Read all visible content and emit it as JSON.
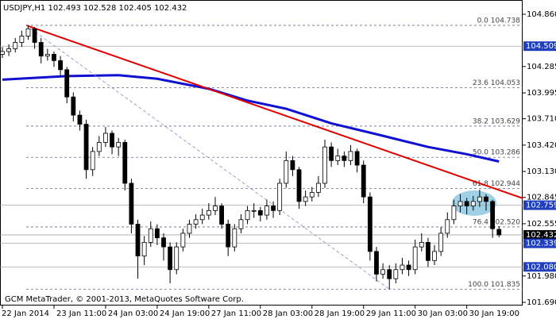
{
  "chart_data": {
    "type": "candlestick",
    "title": "USDJPY,H1  102.493 102.528 102.405 102.432",
    "footer": "GCM MetaTrader, © 2001-2013, MetaQuotes Software Corp.",
    "categories": [
      "22 Jan 2014",
      null,
      null,
      null,
      null,
      null,
      null,
      null,
      "23 Jan 11:00",
      null,
      null,
      null,
      null,
      null,
      null,
      null,
      "24 Jan 03:00",
      null,
      null,
      null,
      null,
      null,
      null,
      null,
      "24 Jan 19:00",
      null,
      null,
      null,
      null,
      null,
      null,
      null,
      "27 Jan 11:00",
      null,
      null,
      null,
      null,
      null,
      null,
      null,
      "28 Jan 03:00",
      null,
      null,
      null,
      null,
      null,
      null,
      null,
      "28 Jan 19:00",
      null,
      null,
      null,
      null,
      null,
      null,
      null,
      "29 Jan 11:00",
      null,
      null,
      null,
      null,
      null,
      null,
      null,
      "30 Jan 03:00",
      null,
      null,
      null,
      null,
      null,
      null,
      null,
      "30 Jan 19:00",
      null,
      null,
      null,
      null,
      null
    ],
    "candles": [
      [
        104.42,
        104.5,
        104.38,
        104.45
      ],
      [
        104.45,
        104.53,
        104.4,
        104.48
      ],
      [
        104.48,
        104.6,
        104.44,
        104.55
      ],
      [
        104.55,
        104.68,
        104.5,
        104.62
      ],
      [
        104.62,
        104.738,
        104.58,
        104.7
      ],
      [
        104.7,
        104.72,
        104.48,
        104.55
      ],
      [
        104.55,
        104.6,
        104.32,
        104.4
      ],
      [
        104.4,
        104.48,
        104.35,
        104.42
      ],
      [
        104.42,
        104.45,
        104.28,
        104.35
      ],
      [
        104.35,
        104.4,
        104.18,
        104.25
      ],
      [
        104.25,
        104.28,
        103.88,
        103.95
      ],
      [
        103.95,
        104.0,
        103.68,
        103.75
      ],
      [
        103.75,
        103.8,
        103.58,
        103.65
      ],
      [
        103.65,
        103.7,
        103.05,
        103.15
      ],
      [
        103.15,
        103.4,
        103.08,
        103.35
      ],
      [
        103.35,
        103.52,
        103.3,
        103.45
      ],
      [
        103.45,
        103.62,
        103.4,
        103.55
      ],
      [
        103.55,
        103.58,
        103.32,
        103.4
      ],
      [
        103.4,
        103.5,
        103.3,
        103.45
      ],
      [
        103.45,
        103.48,
        102.92,
        103.0
      ],
      [
        103.0,
        103.05,
        102.45,
        102.55
      ],
      [
        102.55,
        102.6,
        101.95,
        102.2
      ],
      [
        102.2,
        102.42,
        102.1,
        102.35
      ],
      [
        102.35,
        102.58,
        102.3,
        102.5
      ],
      [
        102.5,
        102.55,
        102.32,
        102.4
      ],
      [
        102.4,
        102.45,
        102.15,
        102.3
      ],
      [
        102.3,
        102.35,
        101.9,
        102.05
      ],
      [
        102.05,
        102.35,
        102.0,
        102.3
      ],
      [
        102.3,
        102.5,
        102.25,
        102.45
      ],
      [
        102.45,
        102.6,
        102.4,
        102.55
      ],
      [
        102.55,
        102.66,
        102.5,
        102.6
      ],
      [
        102.6,
        102.72,
        102.55,
        102.65
      ],
      [
        102.65,
        102.78,
        102.6,
        102.7
      ],
      [
        102.7,
        102.85,
        102.65,
        102.75
      ],
      [
        102.75,
        102.78,
        102.5,
        102.55
      ],
      [
        102.55,
        102.6,
        102.2,
        102.3
      ],
      [
        102.3,
        102.55,
        102.25,
        102.5
      ],
      [
        102.5,
        102.66,
        102.45,
        102.6
      ],
      [
        102.6,
        102.75,
        102.55,
        102.7
      ],
      [
        102.7,
        102.78,
        102.62,
        102.7
      ],
      [
        102.7,
        102.74,
        102.58,
        102.65
      ],
      [
        102.65,
        102.82,
        102.6,
        102.75
      ],
      [
        102.75,
        102.8,
        102.62,
        102.7
      ],
      [
        102.7,
        103.05,
        102.65,
        103.0
      ],
      [
        103.0,
        103.35,
        102.95,
        103.25
      ],
      [
        103.25,
        103.3,
        103.08,
        103.15
      ],
      [
        103.15,
        103.18,
        102.72,
        102.8
      ],
      [
        102.8,
        102.92,
        102.75,
        102.85
      ],
      [
        102.85,
        102.96,
        102.8,
        102.9
      ],
      [
        102.9,
        103.08,
        102.85,
        103.0
      ],
      [
        103.0,
        103.48,
        102.95,
        103.4
      ],
      [
        103.4,
        103.45,
        103.18,
        103.25
      ],
      [
        103.25,
        103.38,
        103.2,
        103.3
      ],
      [
        103.3,
        103.35,
        103.18,
        103.25
      ],
      [
        103.25,
        103.42,
        103.2,
        103.35
      ],
      [
        103.35,
        103.38,
        103.12,
        103.2
      ],
      [
        103.2,
        103.25,
        102.78,
        102.85
      ],
      [
        102.85,
        102.9,
        102.15,
        102.25
      ],
      [
        102.25,
        102.3,
        101.92,
        102.0
      ],
      [
        102.0,
        102.12,
        101.95,
        102.05
      ],
      [
        102.05,
        102.1,
        101.835,
        101.95
      ],
      [
        101.95,
        102.12,
        101.9,
        102.05
      ],
      [
        102.05,
        102.18,
        102.0,
        102.1
      ],
      [
        102.1,
        102.15,
        101.98,
        102.05
      ],
      [
        102.05,
        102.38,
        102.0,
        102.3
      ],
      [
        102.3,
        102.45,
        102.25,
        102.35
      ],
      [
        102.35,
        102.4,
        102.08,
        102.15
      ],
      [
        102.15,
        102.32,
        102.1,
        102.25
      ],
      [
        102.25,
        102.52,
        102.2,
        102.45
      ],
      [
        102.45,
        102.68,
        102.4,
        102.6
      ],
      [
        102.6,
        102.82,
        102.55,
        102.75
      ],
      [
        102.75,
        102.88,
        102.68,
        102.8
      ],
      [
        102.8,
        102.84,
        102.66,
        102.75
      ],
      [
        102.75,
        102.86,
        102.7,
        102.8
      ],
      [
        102.8,
        102.93,
        102.74,
        102.85
      ],
      [
        102.85,
        102.88,
        102.7,
        102.8
      ],
      [
        102.8,
        102.82,
        102.4,
        102.5
      ],
      [
        102.493,
        102.528,
        102.405,
        102.432
      ]
    ],
    "moving_average": {
      "color": "#1010d0",
      "x": [
        0,
        10,
        18,
        24,
        32,
        38,
        44,
        51,
        58,
        66,
        72,
        77
      ],
      "values": [
        104.14,
        104.18,
        104.19,
        104.15,
        104.04,
        103.91,
        103.82,
        103.66,
        103.54,
        103.4,
        103.32,
        103.24
      ]
    },
    "trend_lines": [
      {
        "color": "#e00000",
        "dashed": false,
        "x": [
          3.7,
          80.7
        ],
        "values": [
          104.738,
          102.834
        ]
      },
      {
        "color": "#7f8fbf",
        "dashed": true,
        "x": [
          3.7,
          60
        ],
        "values": [
          104.738,
          101.835
        ]
      }
    ],
    "fib_levels": [
      {
        "value": 104.738,
        "label": "0.0 104.738"
      },
      {
        "value": 104.053,
        "label": "23.6 104.053"
      },
      {
        "value": 103.629,
        "label": "38.2 103.629"
      },
      {
        "value": 103.286,
        "label": "50.0 103.286"
      },
      {
        "value": 102.944,
        "label": "61.8 102.944"
      },
      {
        "value": 102.52,
        "label": "76.4 102.520"
      },
      {
        "value": 101.835,
        "label": "100.0 101.835"
      }
    ],
    "price_levels": [
      {
        "value": 104.509,
        "color": "#1f3fbf"
      },
      {
        "value": 102.759,
        "color": "#1f3fbf"
      },
      {
        "value": 102.432,
        "color": "#000000"
      },
      {
        "value": 102.339,
        "color": "#1f3fbf"
      },
      {
        "value": 102.08,
        "label": "102.080",
        "color": "#1f3fbf"
      }
    ],
    "ylim": [
      101.655,
      105.017
    ],
    "yticks": [
      {
        "value": 104.86,
        "label": "104.860"
      },
      104.285,
      103.995,
      {
        "value": 103.71,
        "label": "103.710"
      },
      {
        "value": 103.42,
        "label": "103.420"
      },
      {
        "value": 103.13,
        "label": "103.130"
      },
      102.845,
      102.555,
      {
        "value": 101.98,
        "label": "101.980"
      },
      {
        "value": 101.69,
        "label": "101.690"
      }
    ]
  }
}
